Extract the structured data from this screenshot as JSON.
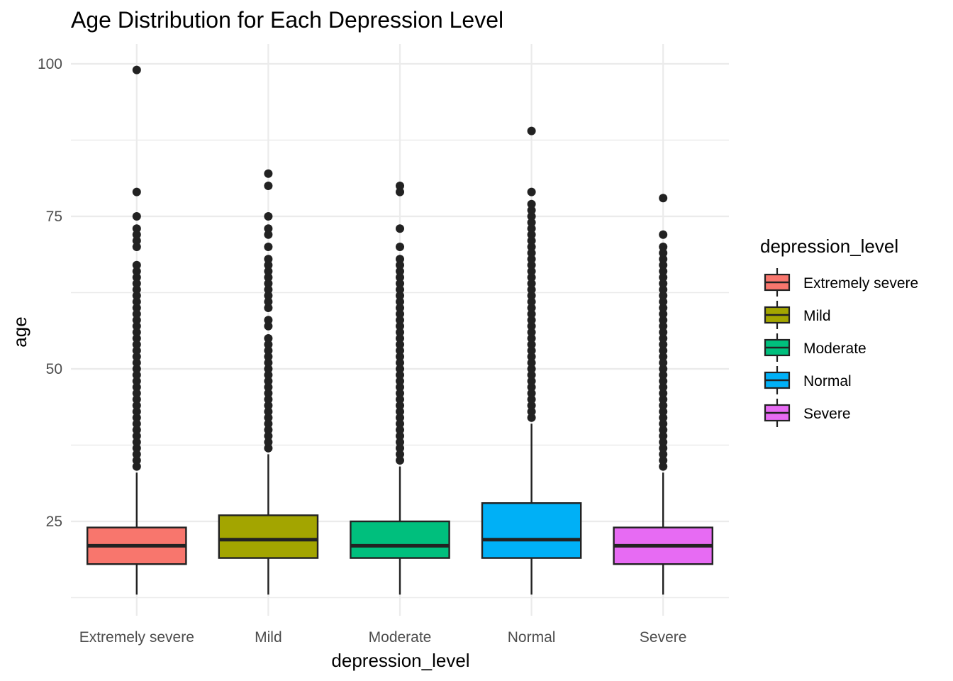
{
  "chart_data": {
    "type": "boxplot",
    "title": "Age Distribution for Each Depression Level",
    "xlabel": "depression_level",
    "ylabel": "age",
    "ylim": [
      9,
      103
    ],
    "yticks": [
      25,
      50,
      75,
      100
    ],
    "grid": true,
    "categories": [
      "Extremely severe",
      "Mild",
      "Moderate",
      "Normal",
      "Severe"
    ],
    "boxes": [
      {
        "category": "Extremely severe",
        "color": "#F8766D",
        "whisker_low": 13,
        "q1": 18,
        "median": 21,
        "q3": 24,
        "whisker_high": 33,
        "outliers": [
          34,
          35,
          36,
          37,
          38,
          39,
          40,
          41,
          42,
          43,
          44,
          45,
          46,
          47,
          48,
          49,
          50,
          51,
          52,
          53,
          54,
          55,
          56,
          57,
          58,
          59,
          60,
          61,
          62,
          63,
          64,
          65,
          66,
          67,
          70,
          71,
          72,
          73,
          75,
          79,
          99
        ]
      },
      {
        "category": "Mild",
        "color": "#A3A500",
        "whisker_low": 13,
        "q1": 19,
        "median": 22,
        "q3": 26,
        "whisker_high": 36,
        "outliers": [
          37,
          38,
          39,
          40,
          41,
          42,
          43,
          44,
          45,
          46,
          47,
          48,
          49,
          50,
          51,
          52,
          53,
          54,
          55,
          57,
          58,
          60,
          61,
          62,
          63,
          64,
          65,
          66,
          67,
          68,
          70,
          72,
          73,
          75,
          80,
          82
        ]
      },
      {
        "category": "Moderate",
        "color": "#00BF7D",
        "whisker_low": 13,
        "q1": 19,
        "median": 21,
        "q3": 25,
        "whisker_high": 34,
        "outliers": [
          35,
          36,
          37,
          38,
          39,
          40,
          41,
          42,
          43,
          44,
          45,
          46,
          47,
          48,
          49,
          50,
          51,
          52,
          53,
          54,
          55,
          56,
          57,
          58,
          59,
          60,
          61,
          62,
          63,
          64,
          65,
          66,
          67,
          68,
          70,
          73,
          79,
          80
        ]
      },
      {
        "category": "Normal",
        "color": "#00B0F6",
        "whisker_low": 13,
        "q1": 19,
        "median": 22,
        "q3": 28,
        "whisker_high": 41,
        "outliers": [
          42,
          43,
          44,
          45,
          46,
          47,
          48,
          49,
          50,
          51,
          52,
          53,
          54,
          55,
          56,
          57,
          58,
          59,
          60,
          61,
          62,
          63,
          64,
          65,
          66,
          67,
          68,
          69,
          70,
          71,
          72,
          73,
          74,
          75,
          76,
          77,
          79,
          89
        ]
      },
      {
        "category": "Severe",
        "color": "#E76BF3",
        "whisker_low": 13,
        "q1": 18,
        "median": 21,
        "q3": 24,
        "whisker_high": 33,
        "outliers": [
          34,
          35,
          36,
          37,
          38,
          39,
          40,
          41,
          42,
          43,
          44,
          45,
          46,
          47,
          48,
          49,
          50,
          51,
          52,
          53,
          54,
          55,
          56,
          57,
          58,
          59,
          60,
          61,
          62,
          63,
          64,
          65,
          66,
          67,
          68,
          69,
          70,
          72,
          78
        ]
      }
    ],
    "legend": {
      "title": "depression_level",
      "position": "right",
      "items": [
        "Extremely severe",
        "Mild",
        "Moderate",
        "Normal",
        "Severe"
      ]
    }
  }
}
